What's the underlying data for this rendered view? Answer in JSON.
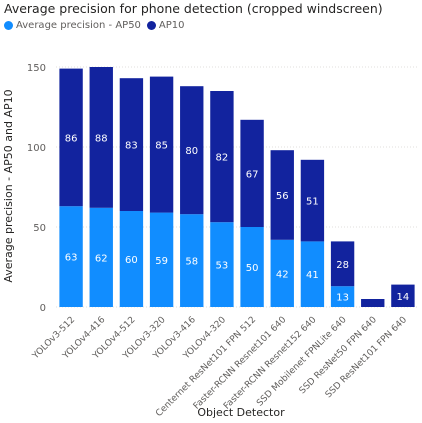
{
  "chart_data": {
    "type": "bar",
    "stacked": true,
    "title": "Average precision for phone detection (cropped windscreen)",
    "xlabel": "Object Detector",
    "ylabel": "Average precision - AP50 and AP10",
    "ylim": [
      0,
      150
    ],
    "yticks": [
      0,
      50,
      100,
      150
    ],
    "grid": true,
    "legend": "top-left",
    "categories": [
      "YOLOv3-512",
      "YOLOv4-416",
      "YOLOv4-512",
      "YOLOv3-320",
      "YOLOv3-416",
      "YOLOv4-320",
      "Centernet ResNet101 FPN 512",
      "Faster-RCNN Resnet101 640",
      "Faster-RCNN Resnet152 640",
      "SSD Mobilenet FPNLite 640",
      "SSD ResNet50 FPN 640",
      "SSD ResNet101 FPN 640"
    ],
    "series": [
      {
        "name": "Average precision - AP50",
        "color": "#118dff",
        "values": [
          63,
          62,
          60,
          59,
          58,
          53,
          50,
          42,
          41,
          13,
          0,
          0
        ],
        "labels": [
          "63",
          "62",
          "60",
          "59",
          "58",
          "53",
          "50",
          "42",
          "41",
          "13",
          "",
          ""
        ]
      },
      {
        "name": "AP10",
        "color": "#12239e",
        "values": [
          86,
          88,
          83,
          85,
          80,
          82,
          67,
          56,
          51,
          28,
          5,
          14
        ],
        "labels": [
          "86",
          "88",
          "83",
          "85",
          "80",
          "82",
          "67",
          "56",
          "51",
          "28",
          "",
          "14"
        ]
      }
    ]
  }
}
